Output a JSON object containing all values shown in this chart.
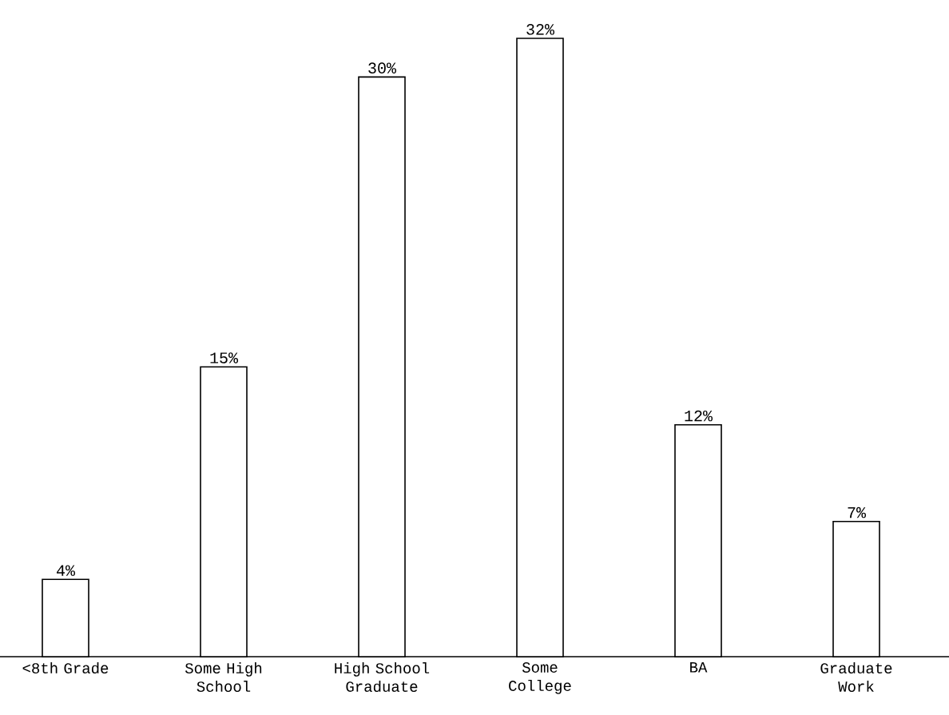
{
  "chart_data": {
    "type": "bar",
    "categories": [
      "<8th Grade",
      "Some High School",
      "High School Graduate",
      "Some College",
      "BA",
      "Graduate Work"
    ],
    "values": [
      4,
      15,
      30,
      32,
      12,
      7
    ],
    "value_labels": [
      "4%",
      "15%",
      "30%",
      "32%",
      "12%",
      "7%"
    ],
    "color": "#ffffff"
  }
}
